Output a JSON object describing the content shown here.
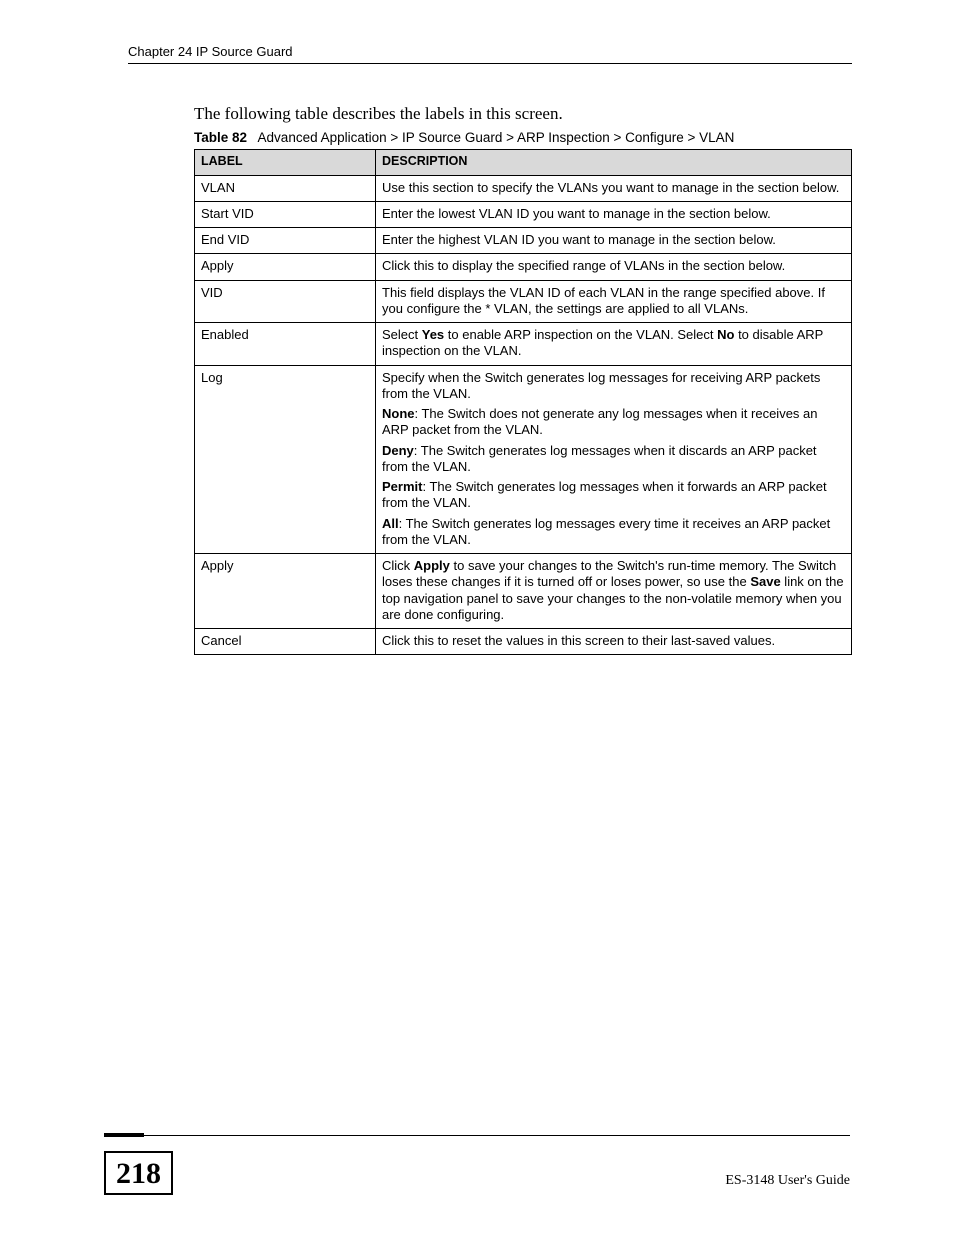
{
  "header": {
    "chapter": "Chapter 24 IP Source Guard"
  },
  "intro": "The following table describes the labels in this screen.",
  "table_caption": {
    "number": "Table 82",
    "text": "Advanced Application > IP Source Guard > ARP Inspection > Configure > VLAN"
  },
  "columns": {
    "label": "LABEL",
    "description": "DESCRIPTION"
  },
  "rows": {
    "vlan": {
      "label": "VLAN",
      "desc": "Use this section to specify the VLANs you want to manage in the section below."
    },
    "start_vid": {
      "label": "Start VID",
      "desc": "Enter the lowest VLAN ID you want to manage in the section below."
    },
    "end_vid": {
      "label": "End VID",
      "desc": "Enter the highest VLAN ID you want to manage in the section below."
    },
    "apply1": {
      "label": "Apply",
      "desc": "Click this to display the specified range of VLANs in the section below."
    },
    "vid": {
      "label": "VID",
      "desc": "This field displays the VLAN ID of each VLAN in the range specified above. If you configure the * VLAN, the settings are applied to all VLANs."
    },
    "enabled": {
      "label": "Enabled",
      "pre": "Select ",
      "yes": "Yes",
      "mid": " to enable ARP inspection on the VLAN. Select ",
      "no": "No",
      "post": " to disable ARP inspection on the VLAN."
    },
    "log": {
      "label": "Log",
      "p1": "Specify when the Switch generates log messages for receiving ARP packets from the VLAN.",
      "none_b": "None",
      "none_t": ": The Switch does not generate any log messages when it receives an ARP packet from the VLAN.",
      "deny_b": "Deny",
      "deny_t": ": The Switch generates log messages when it discards an ARP packet from the VLAN.",
      "permit_b": "Permit",
      "permit_t": ": The Switch generates log messages when it forwards an ARP packet from the VLAN.",
      "all_b": "All",
      "all_t": ": The Switch generates log messages every time it receives an ARP packet from the VLAN."
    },
    "apply2": {
      "label": "Apply",
      "pre": "Click ",
      "apply_b": "Apply",
      "mid": " to save your changes to the Switch's run-time memory. The Switch loses these changes if it is turned off or loses power, so use the ",
      "save_b": "Save",
      "post": " link on the top navigation panel to save your changes to the non-volatile memory when you are done configuring."
    },
    "cancel": {
      "label": "Cancel",
      "desc": "Click this to reset the values in this screen to their last-saved values."
    }
  },
  "footer": {
    "page_number": "218",
    "guide": "ES-3148 User's Guide"
  }
}
